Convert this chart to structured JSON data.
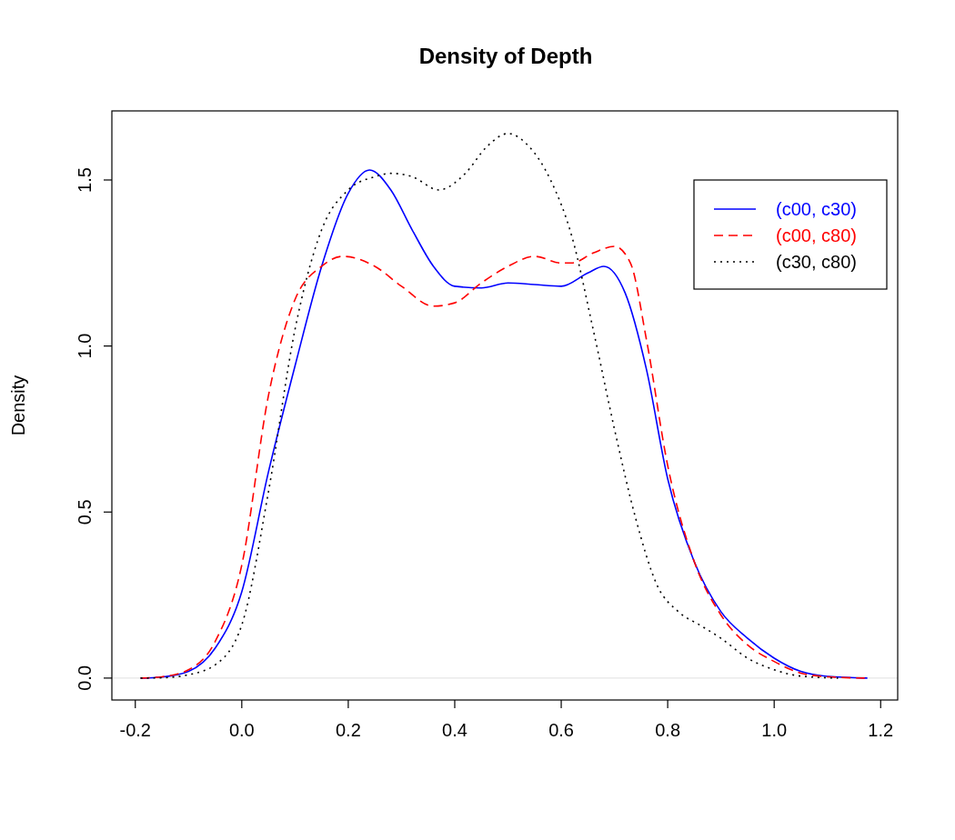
{
  "chart_data": {
    "type": "line",
    "title": "Density of Depth",
    "ylabel": "Density",
    "xlim": [
      -0.244,
      1.232
    ],
    "ylim": [
      -0.066,
      1.708
    ],
    "xticks": [
      {
        "value": -0.2,
        "label": "-0.2"
      },
      {
        "value": 0,
        "label": "0.0"
      },
      {
        "value": 0.2,
        "label": "0.2"
      },
      {
        "value": 0.4,
        "label": "0.4"
      },
      {
        "value": 0.6,
        "label": "0.6"
      },
      {
        "value": 0.8,
        "label": "0.8"
      },
      {
        "value": 1,
        "label": "1.0"
      },
      {
        "value": 1.2,
        "label": "1.2"
      }
    ],
    "yticks": [
      {
        "value": 0,
        "label": "0.0"
      },
      {
        "value": 0.5,
        "label": "0.5"
      },
      {
        "value": 1,
        "label": "1.0"
      },
      {
        "value": 1.5,
        "label": "1.5"
      }
    ],
    "legend": "top right",
    "grid": false,
    "ref_lines": [
      {
        "axis": "y",
        "value": 0,
        "color": "#e0e0e0"
      }
    ],
    "series": [
      {
        "name": "(c00, c30)",
        "color": "#0000ff",
        "line_style": "solid",
        "x": [
          -0.19,
          -0.15,
          -0.1,
          -0.05,
          0,
          0.05,
          0.1,
          0.15,
          0.2,
          0.24,
          0.28,
          0.32,
          0.36,
          0.4,
          0.45,
          0.5,
          0.55,
          0.6,
          0.65,
          0.68,
          0.72,
          0.76,
          0.8,
          0.85,
          0.9,
          0.95,
          1.0,
          1.05,
          1.1,
          1.175
        ],
        "values": [
          0,
          0.003,
          0.02,
          0.09,
          0.26,
          0.62,
          0.94,
          1.24,
          1.46,
          1.53,
          1.47,
          1.35,
          1.24,
          1.18,
          1.175,
          1.19,
          1.185,
          1.18,
          1.22,
          1.24,
          1.16,
          0.93,
          0.6,
          0.35,
          0.2,
          0.12,
          0.06,
          0.02,
          0.005,
          0
        ]
      },
      {
        "name": "(c00, c80)",
        "color": "#ff0000",
        "line_style": "dashed",
        "x": [
          -0.19,
          -0.15,
          -0.1,
          -0.05,
          0,
          0.05,
          0.1,
          0.15,
          0.19,
          0.25,
          0.3,
          0.36,
          0.4,
          0.45,
          0.5,
          0.55,
          0.6,
          0.62,
          0.66,
          0.7,
          0.73,
          0.76,
          0.8,
          0.85,
          0.9,
          0.95,
          1.0,
          1.05,
          1.1,
          1.17
        ],
        "values": [
          0,
          0.004,
          0.025,
          0.11,
          0.34,
          0.85,
          1.14,
          1.24,
          1.27,
          1.24,
          1.18,
          1.12,
          1.13,
          1.19,
          1.24,
          1.27,
          1.25,
          1.25,
          1.28,
          1.3,
          1.25,
          1.02,
          0.64,
          0.35,
          0.19,
          0.1,
          0.05,
          0.015,
          0.004,
          0
        ]
      },
      {
        "name": "(c30, c80)",
        "color": "#000000",
        "line_style": "dotted",
        "x": [
          -0.19,
          -0.15,
          -0.1,
          -0.05,
          0,
          0.05,
          0.1,
          0.15,
          0.2,
          0.25,
          0.28,
          0.32,
          0.37,
          0.42,
          0.46,
          0.5,
          0.54,
          0.58,
          0.62,
          0.66,
          0.7,
          0.74,
          0.78,
          0.82,
          0.86,
          0.9,
          0.95,
          1.0,
          1.05,
          1.12
        ],
        "values": [
          0,
          0.001,
          0.01,
          0.04,
          0.16,
          0.56,
          1.05,
          1.35,
          1.47,
          1.51,
          1.52,
          1.51,
          1.47,
          1.52,
          1.6,
          1.64,
          1.6,
          1.5,
          1.33,
          1.05,
          0.75,
          0.48,
          0.28,
          0.2,
          0.16,
          0.12,
          0.06,
          0.025,
          0.006,
          0
        ]
      }
    ]
  }
}
